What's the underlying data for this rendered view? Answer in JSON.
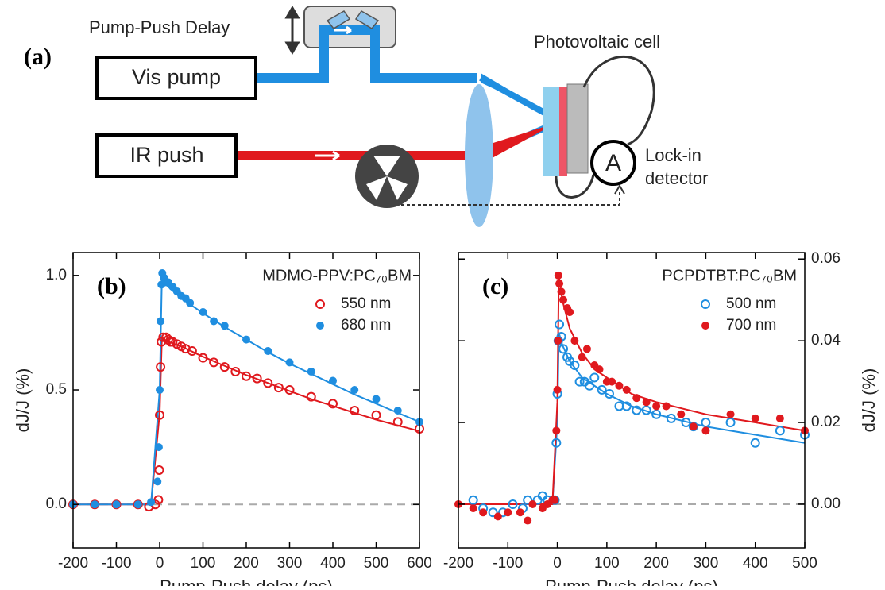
{
  "diagram": {
    "panel_label": "(a)",
    "delay_label": "Pump-Push Delay",
    "pump_label": "Vis pump",
    "push_label": "IR push",
    "cell_label": "Photovoltaic cell",
    "ammeter_label": "A",
    "detector_label_line1": "Lock-in",
    "detector_label_line2": "detector"
  },
  "chart_data": [
    {
      "type": "scatter",
      "panel_label": "(b)",
      "title": "MDMO-PPV:PC₇₀BM",
      "x_label": "Pump-Push delay (ps)",
      "y_label": "dJ/J (%)",
      "y_axis_side": "left",
      "legend": "upper right",
      "xlim": [
        -200,
        600
      ],
      "xticks": [
        -200,
        -100,
        0,
        100,
        200,
        300,
        400,
        500,
        600
      ],
      "ylim": [
        -0.19,
        1.1
      ],
      "yticks": [
        {
          "value": 0,
          "label": "0.0"
        },
        {
          "value": 0.5,
          "label": "0.5"
        },
        {
          "value": 1,
          "label": "1.0"
        }
      ],
      "reference_line": 0,
      "series": [
        {
          "name": "550 nm",
          "color": "#e0191e",
          "marker": "open",
          "x": [
            -200,
            -150,
            -100,
            -50,
            -25,
            -10,
            -3,
            -1,
            0,
            2,
            4,
            8,
            15,
            20,
            25,
            30,
            40,
            50,
            60,
            75,
            100,
            125,
            150,
            175,
            200,
            225,
            250,
            275,
            300,
            350,
            400,
            450,
            500,
            550,
            600
          ],
          "values": [
            0,
            0,
            0,
            0,
            -0.01,
            0,
            0.02,
            0.15,
            0.39,
            0.6,
            0.71,
            0.73,
            0.73,
            0.72,
            0.71,
            0.71,
            0.7,
            0.69,
            0.68,
            0.67,
            0.64,
            0.62,
            0.6,
            0.58,
            0.56,
            0.55,
            0.53,
            0.51,
            0.5,
            0.47,
            0.44,
            0.41,
            0.39,
            0.36,
            0.33
          ]
        },
        {
          "name": "680 nm",
          "color": "#1f8ee0",
          "marker": "filled",
          "x": [
            -200,
            -150,
            -100,
            -50,
            -20,
            -5,
            -2,
            0,
            2,
            4,
            6,
            10,
            15,
            20,
            30,
            40,
            50,
            60,
            70,
            100,
            125,
            150,
            200,
            250,
            300,
            350,
            400,
            450,
            500,
            550,
            600
          ],
          "values": [
            0,
            0,
            0,
            0,
            0.01,
            0.1,
            0.25,
            0.5,
            0.8,
            0.96,
            1.01,
            0.99,
            0.97,
            0.97,
            0.95,
            0.93,
            0.91,
            0.9,
            0.88,
            0.84,
            0.8,
            0.78,
            0.72,
            0.67,
            0.62,
            0.58,
            0.54,
            0.5,
            0.46,
            0.41,
            0.36
          ]
        }
      ],
      "fits": [
        {
          "color": "#e0191e",
          "x": [
            -200,
            -20,
            0,
            5,
            20,
            50,
            100,
            150,
            200,
            250,
            300,
            350,
            400,
            450,
            500,
            550,
            600
          ],
          "values": [
            0,
            0,
            0.4,
            0.72,
            0.71,
            0.69,
            0.645,
            0.605,
            0.565,
            0.53,
            0.495,
            0.46,
            0.43,
            0.4,
            0.37,
            0.345,
            0.32
          ]
        },
        {
          "color": "#1f8ee0",
          "x": [
            -200,
            -20,
            0,
            5,
            20,
            50,
            100,
            150,
            200,
            250,
            300,
            350,
            400,
            450,
            500,
            550,
            600
          ],
          "values": [
            0,
            0,
            0.5,
            0.98,
            0.95,
            0.9,
            0.835,
            0.775,
            0.72,
            0.665,
            0.615,
            0.57,
            0.525,
            0.48,
            0.44,
            0.4,
            0.36
          ]
        }
      ]
    },
    {
      "type": "scatter",
      "panel_label": "(c)",
      "title": "PCPDTBT:PC₇₀BM",
      "x_label": "Pump-Push delay (ps)",
      "y_label": "dJ/J (%)",
      "y_axis_side": "right",
      "legend": "upper right",
      "xlim": [
        -200,
        500
      ],
      "xticks": [
        -200,
        -100,
        0,
        100,
        200,
        300,
        400,
        500
      ],
      "ylim": [
        -0.0107,
        0.0616
      ],
      "yticks": [
        {
          "value": 0,
          "label": "0.00"
        },
        {
          "value": 0.02,
          "label": "0.02"
        },
        {
          "value": 0.04,
          "label": "0.04"
        },
        {
          "value": 0.06,
          "label": "0.06"
        }
      ],
      "reference_line": 0,
      "series": [
        {
          "name": "500 nm",
          "color": "#1f8ee0",
          "marker": "open",
          "x": [
            -170,
            -150,
            -130,
            -110,
            -90,
            -70,
            -60,
            -40,
            -30,
            -20,
            -5,
            -2,
            0,
            2,
            4,
            8,
            12,
            20,
            25,
            35,
            45,
            55,
            65,
            75,
            90,
            105,
            125,
            140,
            160,
            180,
            200,
            230,
            260,
            275,
            300,
            350,
            400,
            450,
            500
          ],
          "values": [
            0.001,
            -0.001,
            -0.002,
            -0.002,
            0,
            -0.001,
            0.001,
            0.001,
            0.002,
            0.001,
            0.001,
            0.015,
            0.027,
            0.04,
            0.044,
            0.041,
            0.038,
            0.036,
            0.035,
            0.034,
            0.03,
            0.03,
            0.029,
            0.031,
            0.028,
            0.027,
            0.024,
            0.024,
            0.023,
            0.023,
            0.022,
            0.021,
            0.02,
            0.019,
            0.02,
            0.02,
            0.015,
            0.018,
            0.017
          ]
        },
        {
          "name": "700 nm",
          "color": "#e0191e",
          "marker": "filled",
          "x": [
            -200,
            -170,
            -150,
            -120,
            -100,
            -75,
            -60,
            -50,
            -30,
            -20,
            -10,
            -5,
            -2,
            0,
            1,
            2,
            4,
            8,
            12,
            20,
            25,
            35,
            50,
            60,
            75,
            85,
            100,
            110,
            125,
            140,
            160,
            180,
            200,
            220,
            250,
            275,
            300,
            350,
            400,
            450,
            500
          ],
          "values": [
            0,
            -0.001,
            -0.002,
            -0.003,
            -0.002,
            -0.002,
            -0.004,
            0,
            -0.001,
            0,
            0.001,
            0.001,
            0.018,
            0.028,
            0.04,
            0.056,
            0.054,
            0.052,
            0.05,
            0.048,
            0.047,
            0.04,
            0.036,
            0.038,
            0.034,
            0.033,
            0.03,
            0.03,
            0.029,
            0.028,
            0.026,
            0.025,
            0.024,
            0.024,
            0.022,
            0.019,
            0.018,
            0.022,
            0.021,
            0.021,
            0.018
          ]
        }
      ],
      "fits": [
        {
          "color": "#1f8ee0",
          "x": [
            -200,
            -10,
            0,
            3,
            10,
            25,
            50,
            75,
            100,
            150,
            200,
            250,
            300,
            350,
            400,
            450,
            500
          ],
          "values": [
            0,
            0,
            0.02,
            0.042,
            0.039,
            0.035,
            0.031,
            0.029,
            0.027,
            0.024,
            0.022,
            0.0205,
            0.019,
            0.018,
            0.017,
            0.016,
            0.015
          ]
        },
        {
          "color": "#e0191e",
          "x": [
            -200,
            -10,
            0,
            3,
            10,
            25,
            50,
            75,
            100,
            150,
            200,
            250,
            300,
            350,
            400,
            450,
            500
          ],
          "values": [
            0,
            0,
            0.025,
            0.056,
            0.05,
            0.043,
            0.037,
            0.033,
            0.031,
            0.027,
            0.025,
            0.0235,
            0.022,
            0.021,
            0.02,
            0.019,
            0.018
          ]
        }
      ]
    }
  ]
}
